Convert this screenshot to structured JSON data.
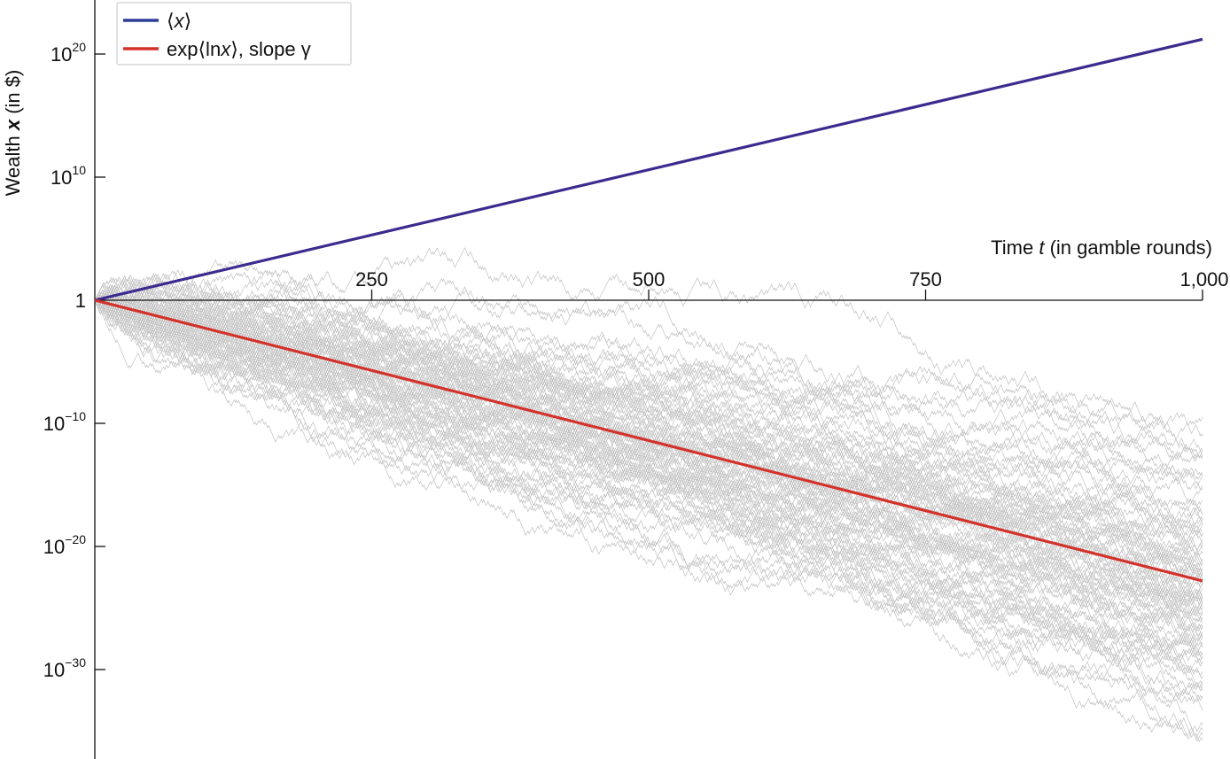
{
  "chart_data": {
    "type": "line",
    "xlabel": {
      "prefix": "Time ",
      "var": "t",
      "suffix": " (in gamble rounds)"
    },
    "ylabel": {
      "prefix": "Wealth ",
      "var": "x",
      "suffix": " (in $)"
    },
    "xlim": [
      0,
      1000
    ],
    "ylim_log10": [
      -35.5,
      24
    ],
    "y_scale": "log",
    "x_ticks": [
      {
        "value": 250,
        "label": "250"
      },
      {
        "value": 500,
        "label": "500"
      },
      {
        "value": 750,
        "label": "750"
      },
      {
        "value": 1000,
        "label": "1,000"
      }
    ],
    "y_ticks": [
      {
        "exp10": 20,
        "base": "10",
        "sup": "20"
      },
      {
        "exp10": 10,
        "base": "10",
        "sup": "10"
      },
      {
        "exp10": 0,
        "base": "1",
        "sup": ""
      },
      {
        "exp10": -10,
        "base": "10",
        "sup": "−10"
      },
      {
        "exp10": -20,
        "base": "10",
        "sup": "−20"
      },
      {
        "exp10": -30,
        "base": "10",
        "sup": "−30"
      }
    ],
    "x_axis_position": "y = 1",
    "legend_position": "top-left",
    "grid": false,
    "series": [
      {
        "name": "⟨x⟩",
        "color": "#3d2a8f",
        "x": [
          0,
          1000
        ],
        "log10_y": [
          0,
          21.2
        ]
      },
      {
        "name": "exp⟨ln x⟩, slope γ",
        "color": "#d3322b",
        "x": [
          0,
          1000
        ],
        "log10_y": [
          0,
          -22.8
        ]
      }
    ],
    "background_trajectories": {
      "color": "#b8b8b8",
      "count": 100,
      "step_log10_up": 0.176,
      "step_log10_down": -0.222,
      "x": [
        0,
        1000
      ],
      "start_log10_y": 0
    }
  },
  "legend": {
    "items": [
      {
        "mean_open": "⟨",
        "mean_var": "x",
        "mean_close": "⟩",
        "color": "#2d3d9a"
      },
      {
        "pre": "exp⟨ln",
        "var": "x",
        "post": "⟩, slope γ",
        "color": "#d3322b"
      }
    ]
  }
}
